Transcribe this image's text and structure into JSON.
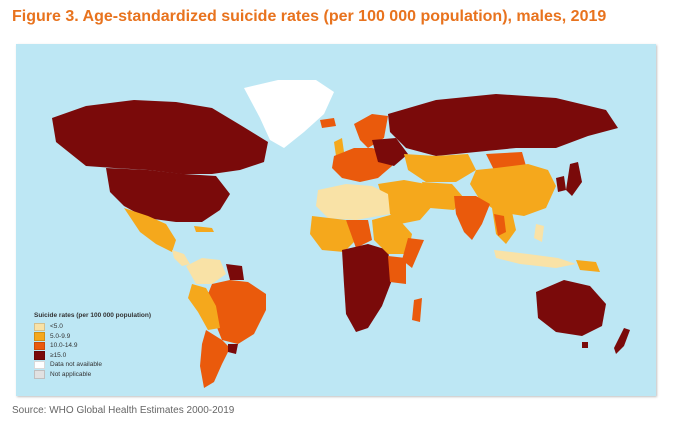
{
  "figure": {
    "title": "Figure 3. Age-standardized suicide rates (per 100 000 population), males, 2019",
    "source": "Source: WHO Global Health Estimates 2000-2019"
  },
  "colors": {
    "ocean": "#bde7f4",
    "lt5": "#f9e2a6",
    "r5_9": "#f5a81c",
    "r10_14": "#ea5a0c",
    "ge15": "#7a0a0a",
    "no_data": "#ffffff",
    "not_applicable": "#e1e1e1"
  },
  "legend": {
    "title": "Suicide rates (per 100 000 population)",
    "items": [
      {
        "label": "<5.0",
        "color": "#f9e2a6"
      },
      {
        "label": "5.0-9.9",
        "color": "#f5a81c"
      },
      {
        "label": "10.0-14.9",
        "color": "#ea5a0c"
      },
      {
        "label": "≥15.0",
        "color": "#7a0a0a"
      },
      {
        "label": "Data not available",
        "color": "#ffffff"
      },
      {
        "label": "Not applicable",
        "color": "#e1e1e1"
      }
    ]
  }
}
